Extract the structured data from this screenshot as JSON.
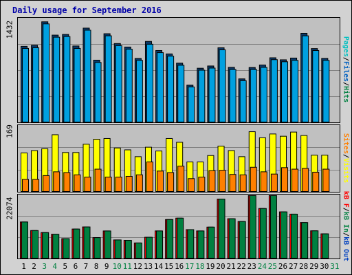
{
  "title": "Daily usage for September 2016",
  "colors": {
    "hits": "#00a0e0",
    "files": "#0060c0",
    "pages": "#00c0c0",
    "visits": "#ffff00",
    "sites": "#ff8000",
    "kbin": "#008040",
    "kbout": "#0040c0",
    "kbf": "#ff0000",
    "gridline": "#808080",
    "xlabel_weekday": "#000000",
    "xlabel_weekend": "#008040"
  },
  "legend": {
    "top": [
      {
        "text": "Pages",
        "color": "#00c0c0"
      },
      {
        "text": "/",
        "color": "#000000"
      },
      {
        "text": "Files",
        "color": "#0060c0"
      },
      {
        "text": "/",
        "color": "#000000"
      },
      {
        "text": "Hits",
        "color": "#008040"
      }
    ],
    "mid": [
      {
        "text": "Sites",
        "color": "#ff8000"
      },
      {
        "text": "/",
        "color": "#000000"
      },
      {
        "text": "Visits",
        "color": "#ffff00"
      }
    ],
    "bot": [
      {
        "text": "kB F",
        "color": "#ff0000"
      },
      {
        "text": "/",
        "color": "#000000"
      },
      {
        "text": "kB In",
        "color": "#008040"
      },
      {
        "text": "/",
        "color": "#000000"
      },
      {
        "text": "kB Out",
        "color": "#0040c0"
      }
    ]
  },
  "chart_data": [
    {
      "type": "bar",
      "panel": "hits_files",
      "ymax_label": "1432",
      "ylim": [
        0,
        1432
      ],
      "categories": [
        "1",
        "2",
        "3",
        "4",
        "5",
        "6",
        "7",
        "8",
        "9",
        "10",
        "11",
        "12",
        "13",
        "14",
        "15",
        "16",
        "17",
        "18",
        "19",
        "20",
        "21",
        "22",
        "23",
        "24",
        "25",
        "26",
        "27",
        "28",
        "29",
        "30",
        "31"
      ],
      "series": [
        {
          "name": "Hits",
          "values": [
            1080,
            1095,
            1430,
            1240,
            1250,
            1085,
            1340,
            883,
            1260,
            1120,
            1070,
            907,
            1150,
            1020,
            972,
            840,
            526,
            768,
            800,
            1060,
            780,
            616,
            778,
            814,
            917,
            888,
            913,
            1265,
            1048,
            908,
            null
          ]
        },
        {
          "name": "Files",
          "values": [
            1050,
            1060,
            1400,
            1210,
            1220,
            1050,
            1310,
            850,
            1230,
            1090,
            1040,
            880,
            1110,
            990,
            940,
            810,
            500,
            740,
            770,
            1030,
            750,
            590,
            750,
            780,
            890,
            860,
            880,
            1230,
            1020,
            880,
            null
          ]
        }
      ],
      "weekend_days": [
        "3",
        "4",
        "10",
        "11",
        "17",
        "18",
        "24",
        "25",
        "31"
      ]
    },
    {
      "type": "bar",
      "panel": "visits_sites",
      "ymax_label": "169",
      "ylim": [
        0,
        169
      ],
      "categories": [
        "1",
        "2",
        "3",
        "4",
        "5",
        "6",
        "7",
        "8",
        "9",
        "10",
        "11",
        "12",
        "13",
        "14",
        "15",
        "16",
        "17",
        "18",
        "19",
        "20",
        "21",
        "22",
        "23",
        "24",
        "25",
        "26",
        "27",
        "28",
        "29",
        "30",
        "31"
      ],
      "series": [
        {
          "name": "Visits",
          "values": [
            102,
            108,
            113,
            150,
            103,
            103,
            125,
            138,
            140,
            115,
            110,
            92,
            117,
            107,
            140,
            130,
            78,
            78,
            95,
            120,
            108,
            92,
            158,
            142,
            152,
            146,
            157,
            148,
            96,
            96,
            null
          ]
        },
        {
          "name": "Sites",
          "values": [
            32,
            32,
            42,
            52,
            50,
            44,
            38,
            59,
            38,
            38,
            40,
            44,
            78,
            54,
            50,
            67,
            34,
            38,
            55,
            56,
            45,
            44,
            64,
            52,
            46,
            63,
            59,
            61,
            51,
            59,
            null
          ]
        }
      ]
    },
    {
      "type": "bar",
      "panel": "kb_in_out",
      "ymax_label": "22074",
      "ylim": [
        0,
        22074
      ],
      "categories": [
        "1",
        "2",
        "3",
        "4",
        "5",
        "6",
        "7",
        "8",
        "9",
        "10",
        "11",
        "12",
        "13",
        "14",
        "15",
        "16",
        "17",
        "18",
        "19",
        "20",
        "21",
        "22",
        "23",
        "24",
        "25",
        "26",
        "27",
        "28",
        "29",
        "30",
        "31"
      ],
      "series": [
        {
          "name": "kB F",
          "values": [
            12770,
            9750,
            9030,
            8430,
            6900,
            10280,
            11020,
            7250,
            9600,
            6440,
            6290,
            5370,
            7380,
            9610,
            13630,
            14130,
            10070,
            9610,
            10970,
            20840,
            13920,
            12940,
            22074,
            17530,
            22074,
            16340,
            15540,
            12560,
            9650,
            8590,
            null
          ]
        },
        {
          "name": "kB In",
          "values": [
            12770,
            9750,
            9030,
            8430,
            6900,
            10280,
            11020,
            7250,
            9600,
            6440,
            6290,
            5370,
            7380,
            9610,
            13630,
            14130,
            10070,
            9610,
            10970,
            20840,
            13920,
            12940,
            22074,
            17530,
            22074,
            16340,
            15540,
            12560,
            9650,
            8590,
            null
          ]
        }
      ]
    }
  ]
}
